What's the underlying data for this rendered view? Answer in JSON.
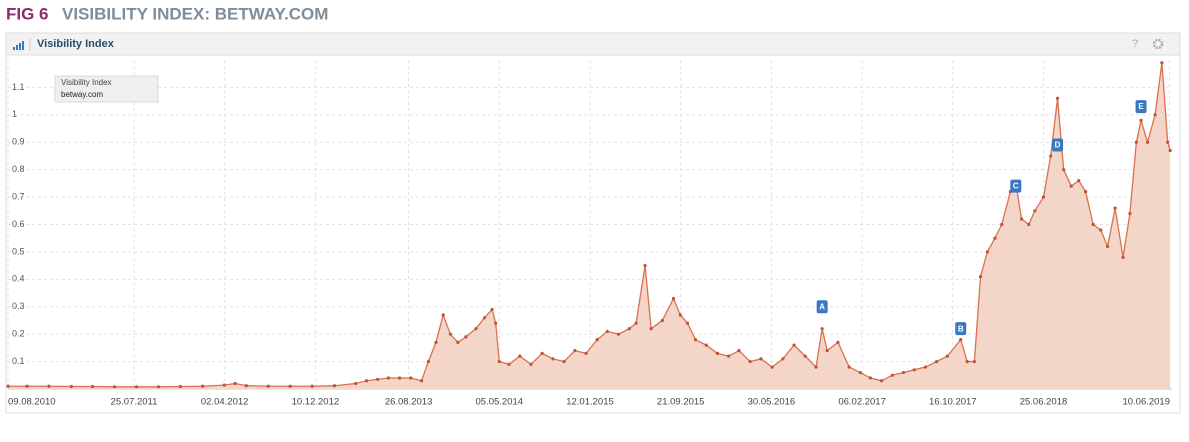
{
  "figure": {
    "label": "FIG 6",
    "title": "VISIBILITY INDEX: BETWAY.COM"
  },
  "panel": {
    "title": "Visibility Index",
    "help": "?"
  },
  "chart_data": {
    "type": "area",
    "legend_title": "Visibility Index",
    "x": [
      "2010-08-09",
      "2010-10-01",
      "2010-12-01",
      "2011-02-01",
      "2011-04-01",
      "2011-06-01",
      "2011-08-01",
      "2011-10-01",
      "2011-12-01",
      "2012-02-01",
      "2012-04-01",
      "2012-05-01",
      "2012-06-01",
      "2012-08-01",
      "2012-10-01",
      "2012-12-01",
      "2013-02-01",
      "2013-04-01",
      "2013-05-01",
      "2013-06-01",
      "2013-07-01",
      "2013-08-01",
      "2013-09-01",
      "2013-10-01",
      "2013-10-20",
      "2013-11-10",
      "2013-11-30",
      "2013-12-20",
      "2014-01-10",
      "2014-02-01",
      "2014-03-01",
      "2014-03-25",
      "2014-04-15",
      "2014-04-25",
      "2014-05-05",
      "2014-06-01",
      "2014-07-01",
      "2014-08-01",
      "2014-09-01",
      "2014-10-01",
      "2014-11-01",
      "2014-12-01",
      "2015-01-01",
      "2015-02-01",
      "2015-03-01",
      "2015-04-01",
      "2015-05-01",
      "2015-05-20",
      "2015-06-14",
      "2015-07-01",
      "2015-08-01",
      "2015-09-01",
      "2015-09-20",
      "2015-10-10",
      "2015-11-01",
      "2015-12-01",
      "2016-01-01",
      "2016-02-01",
      "2016-03-01",
      "2016-04-01",
      "2016-05-01",
      "2016-06-01",
      "2016-07-01",
      "2016-08-01",
      "2016-09-01",
      "2016-10-01",
      "2016-10-18",
      "2016-11-01",
      "2016-12-01",
      "2017-01-01",
      "2017-02-01",
      "2017-03-01",
      "2017-04-01",
      "2017-05-01",
      "2017-06-01",
      "2017-07-01",
      "2017-08-01",
      "2017-09-01",
      "2017-10-01",
      "2017-11-07",
      "2017-11-25",
      "2017-12-15",
      "2018-01-01",
      "2018-01-20",
      "2018-02-10",
      "2018-03-01",
      "2018-03-25",
      "2018-04-09",
      "2018-04-25",
      "2018-05-15",
      "2018-06-01",
      "2018-06-25",
      "2018-07-15",
      "2018-08-03",
      "2018-08-20",
      "2018-09-10",
      "2018-10-01",
      "2018-10-20",
      "2018-11-10",
      "2018-12-01",
      "2018-12-20",
      "2019-01-10",
      "2019-02-01",
      "2019-02-20",
      "2019-03-10",
      "2019-03-23",
      "2019-04-10",
      "2019-05-01",
      "2019-05-20",
      "2019-06-05",
      "2019-06-12"
    ],
    "series": [
      {
        "name": "betway.com",
        "color": "#d9704f",
        "fill": "#f4d6c9",
        "marker_color": "#bf5334",
        "values": [
          0.01,
          0.01,
          0.01,
          0.009,
          0.009,
          0.008,
          0.008,
          0.008,
          0.009,
          0.01,
          0.014,
          0.02,
          0.012,
          0.01,
          0.01,
          0.01,
          0.012,
          0.02,
          0.03,
          0.035,
          0.04,
          0.04,
          0.04,
          0.03,
          0.1,
          0.17,
          0.27,
          0.2,
          0.17,
          0.19,
          0.22,
          0.26,
          0.29,
          0.24,
          0.1,
          0.09,
          0.12,
          0.09,
          0.13,
          0.11,
          0.1,
          0.14,
          0.13,
          0.18,
          0.21,
          0.2,
          0.22,
          0.24,
          0.45,
          0.22,
          0.25,
          0.33,
          0.27,
          0.24,
          0.18,
          0.16,
          0.13,
          0.12,
          0.14,
          0.1,
          0.11,
          0.08,
          0.11,
          0.16,
          0.12,
          0.08,
          0.22,
          0.14,
          0.17,
          0.08,
          0.06,
          0.04,
          0.03,
          0.05,
          0.06,
          0.07,
          0.08,
          0.1,
          0.12,
          0.18,
          0.1,
          0.1,
          0.41,
          0.5,
          0.55,
          0.6,
          0.72,
          0.75,
          0.62,
          0.6,
          0.65,
          0.7,
          0.85,
          1.06,
          0.8,
          0.74,
          0.76,
          0.72,
          0.6,
          0.58,
          0.52,
          0.66,
          0.48,
          0.64,
          0.9,
          0.98,
          0.9,
          1.0,
          1.19,
          0.9,
          0.87
        ]
      }
    ],
    "annotations": [
      {
        "label": "A",
        "x": "2016-10-18",
        "y": 0.3
      },
      {
        "label": "B",
        "x": "2017-11-07",
        "y": 0.22
      },
      {
        "label": "C",
        "x": "2018-04-09",
        "y": 0.74
      },
      {
        "label": "D",
        "x": "2018-08-03",
        "y": 0.89
      },
      {
        "label": "E",
        "x": "2019-03-23",
        "y": 1.03
      }
    ],
    "annotation_color": "#3b78c4",
    "xlim": [
      "2010-08-09",
      "2019-06-17"
    ],
    "xticks": [
      {
        "value": "2010-08-09",
        "label": "09.08.2010"
      },
      {
        "value": "2011-07-25",
        "label": "25.07.2011"
      },
      {
        "value": "2012-04-02",
        "label": "02.04.2012"
      },
      {
        "value": "2012-12-10",
        "label": "10.12.2012"
      },
      {
        "value": "2013-08-26",
        "label": "26.08.2013"
      },
      {
        "value": "2014-05-05",
        "label": "05.05.2014"
      },
      {
        "value": "2015-01-12",
        "label": "12.01.2015"
      },
      {
        "value": "2015-09-21",
        "label": "21.09.2015"
      },
      {
        "value": "2016-05-30",
        "label": "30.05.2016"
      },
      {
        "value": "2017-02-06",
        "label": "06.02.2017"
      },
      {
        "value": "2017-10-16",
        "label": "16.10.2017"
      },
      {
        "value": "2018-06-25",
        "label": "25.06.2018"
      },
      {
        "value": "2019-06-10",
        "label": "10.06.2019"
      }
    ],
    "ylim": [
      0,
      1.2
    ],
    "yticks": [
      0.1,
      0.2,
      0.3,
      0.4,
      0.5,
      0.6,
      0.7,
      0.8,
      0.9,
      1,
      1.1
    ],
    "grid": true
  }
}
